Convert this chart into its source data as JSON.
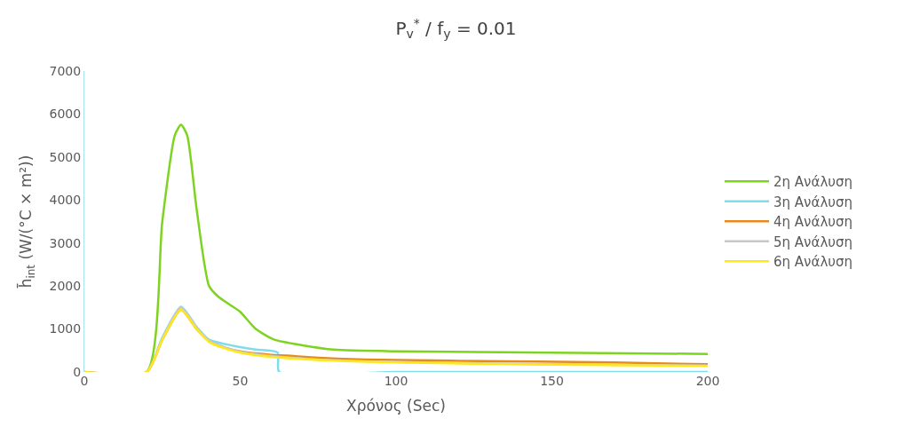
{
  "chart_data": {
    "type": "line",
    "title": "P$_{v}$$^{*}$ / f$_{y}$ = 0.01",
    "xlabel": "Χρόνος (Sec)",
    "ylabel": "h̄$_{int}$ (W/(°C × m²))",
    "xlim": [
      0,
      200
    ],
    "ylim": [
      0,
      7000
    ],
    "xticks": [
      0,
      50,
      100,
      150,
      200
    ],
    "yticks": [
      0,
      1000,
      2000,
      3000,
      4000,
      5000,
      6000,
      7000
    ],
    "grid": false,
    "legend": "right",
    "marker": "none",
    "line_style": "solid",
    "series": [
      {
        "name": "2η Ανάλυση",
        "color": "#7ed321",
        "x": [
          0,
          20,
          25,
          29,
          31,
          33,
          36,
          40,
          43,
          47,
          50,
          55,
          61,
          70,
          80,
          100,
          150,
          200
        ],
        "values": [
          0,
          0,
          3500,
          5500,
          5750,
          5500,
          3800,
          2000,
          1750,
          1550,
          1400,
          1000,
          750,
          620,
          520,
          480,
          450,
          420
        ]
      },
      {
        "name": "3η Ανάλυση",
        "color": "#7fdcec",
        "x": [
          0,
          20,
          25,
          31,
          36,
          40,
          45,
          50,
          55,
          62,
          62.5,
          100,
          150,
          200
        ],
        "values": [
          0,
          0,
          800,
          1520,
          1050,
          750,
          650,
          580,
          520,
          450,
          0,
          0,
          0,
          0
        ]
      },
      {
        "name": "4η Ανάλυση",
        "color": "#e8891c",
        "x": [
          0,
          20,
          25,
          31,
          36,
          40,
          45,
          50,
          60,
          65,
          75,
          90,
          120,
          170,
          200
        ],
        "values": [
          0,
          0,
          750,
          1450,
          1000,
          720,
          570,
          480,
          400,
          380,
          330,
          290,
          260,
          220,
          180
        ]
      },
      {
        "name": "5η Ανάλυση",
        "color": "#c8c8c8",
        "x": [
          0,
          20,
          25,
          31,
          36,
          40,
          45,
          50,
          60,
          75,
          100,
          150,
          200
        ],
        "values": [
          0,
          0,
          780,
          1500,
          1030,
          730,
          570,
          470,
          370,
          290,
          230,
          180,
          150
        ]
      },
      {
        "name": "6η Ανάλυση",
        "color": "#ffe81a",
        "x": [
          0,
          20,
          25,
          31,
          36,
          40,
          45,
          50,
          60,
          75,
          100,
          150,
          200
        ],
        "values": [
          0,
          0,
          750,
          1450,
          1000,
          700,
          550,
          450,
          350,
          280,
          220,
          170,
          140
        ]
      }
    ]
  }
}
